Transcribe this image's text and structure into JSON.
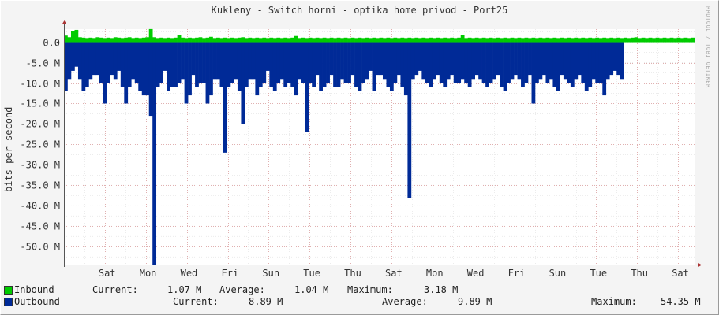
{
  "title": "Kukleny - Switch horni - optika home privod - Port25",
  "watermark": "RRDTOOL / TOBI OETIKER",
  "colors": {
    "inbound": "#00cc00",
    "outbound": "#002a97",
    "grid": "#e0b0b0",
    "axis": "#555555"
  },
  "chart_data": {
    "type": "area",
    "ylabel": "bits per second",
    "ylim": [
      -54.35,
      3.18
    ],
    "y_unit": "M",
    "yticks": [
      {
        "value": 0,
        "label": "0.0"
      },
      {
        "value": -5,
        "label": "-5.0 M"
      },
      {
        "value": -10,
        "label": "-10.0 M"
      },
      {
        "value": -15,
        "label": "-15.0 M"
      },
      {
        "value": -20,
        "label": "-20.0 M"
      },
      {
        "value": -25,
        "label": "-25.0 M"
      },
      {
        "value": -30,
        "label": "-30.0 M"
      },
      {
        "value": -35,
        "label": "-35.0 M"
      },
      {
        "value": -40,
        "label": "-40.0 M"
      },
      {
        "value": -45,
        "label": "-45.0 M"
      },
      {
        "value": -50,
        "label": "-50.0 M"
      }
    ],
    "xticks": [
      "Sat",
      "Mon",
      "Wed",
      "Fri",
      "Sun",
      "Tue",
      "Thu",
      "Sat",
      "Mon",
      "Wed",
      "Fri",
      "Sun",
      "Tue",
      "Thu",
      "Sat"
    ],
    "x_start_day": "Thu",
    "series": [
      {
        "name": "Inbound",
        "values": [
          1.6,
          1.2,
          2.6,
          3.0,
          1.2,
          1.1,
          1.0,
          1.1,
          1.0,
          1.2,
          1.1,
          1.0,
          1.1,
          1.0,
          1.2,
          1.1,
          1.0,
          1.1,
          1.2,
          1.0,
          1.1,
          1.0,
          1.1,
          1.2,
          3.2,
          1.2,
          1.0,
          1.1,
          1.0,
          1.1,
          1.0,
          1.1,
          1.8,
          1.1,
          1.0,
          1.1,
          1.0,
          1.1,
          1.2,
          1.0,
          1.1,
          1.3,
          1.0,
          1.1,
          1.0,
          1.1,
          1.0,
          1.1,
          1.0,
          1.1,
          1.2,
          1.0,
          1.1,
          1.0,
          1.1,
          1.0,
          1.1,
          1.0,
          1.1,
          1.0,
          1.1,
          1.0,
          1.1,
          1.0,
          1.1,
          1.5,
          1.0,
          1.1,
          1.0,
          1.1,
          1.0,
          1.1,
          1.0,
          1.1,
          1.0,
          1.1,
          1.0,
          1.1,
          1.0,
          1.1,
          1.0,
          1.1,
          1.0,
          1.1,
          1.0,
          1.1,
          1.0,
          1.1,
          1.0,
          1.1,
          1.0,
          1.1,
          1.0,
          1.1,
          1.0,
          1.1,
          1.0,
          1.1,
          1.0,
          1.1,
          1.0,
          1.1,
          1.0,
          1.1,
          1.0,
          1.1,
          1.0,
          1.1,
          1.0,
          1.1,
          1.0,
          1.1,
          1.7,
          1.0,
          1.1,
          1.0,
          1.1,
          1.0,
          1.1,
          1.0,
          1.1,
          1.0,
          1.1,
          1.0,
          1.1,
          1.0,
          1.1,
          1.0,
          1.1,
          1.0,
          1.1,
          1.0,
          1.1,
          1.0,
          1.1,
          1.0,
          1.1,
          1.0,
          1.1,
          1.0,
          1.1,
          1.0,
          1.1,
          1.0,
          1.1,
          1.0,
          1.1,
          1.0,
          1.1,
          1.0,
          1.1,
          1.0,
          1.1,
          1.0,
          1.1,
          1.0,
          1.1,
          1.0,
          1.1,
          1.0,
          1.1,
          1.2,
          1.0,
          1.1,
          1.0,
          1.1,
          1.0,
          1.1,
          1.0,
          1.1,
          1.0,
          1.1,
          1.0,
          1.1,
          1.0,
          1.1,
          1.0,
          1.1
        ]
      },
      {
        "name": "Outbound",
        "values": [
          12,
          9,
          7,
          6,
          9,
          12,
          11,
          9,
          8,
          8,
          10,
          15,
          10,
          8,
          9,
          7,
          11,
          15,
          11,
          9,
          10,
          12,
          13,
          13,
          18,
          56,
          11,
          10,
          7,
          12,
          11,
          11,
          10,
          9,
          15,
          13,
          8,
          11,
          10,
          10,
          15,
          13,
          9,
          9,
          11,
          27,
          11,
          10,
          9,
          12,
          20,
          11,
          9,
          9,
          13,
          11,
          10,
          7,
          11,
          12,
          10,
          9,
          11,
          10,
          11,
          13,
          9,
          10,
          22,
          10,
          11,
          8,
          12,
          11,
          10,
          8,
          11,
          11,
          9,
          10,
          10,
          8,
          11,
          12,
          10,
          9,
          7,
          12,
          8,
          8,
          9,
          11,
          12,
          10,
          8,
          11,
          13,
          38,
          9,
          8,
          7,
          9,
          10,
          11,
          9,
          8,
          10,
          11,
          9,
          8,
          10,
          10,
          9,
          10,
          11,
          9,
          8,
          9,
          10,
          11,
          10,
          9,
          8,
          11,
          12,
          10,
          9,
          8,
          9,
          11,
          10,
          8,
          15,
          10,
          9,
          8,
          10,
          9,
          11,
          12,
          8,
          9,
          10,
          11,
          9,
          8,
          10,
          12,
          11,
          9,
          10,
          10,
          13,
          9,
          8,
          7,
          8,
          9
        ]
      }
    ]
  },
  "legend": {
    "inbound": {
      "name": "Inbound",
      "current_label": "Current:",
      "current": "1.07 M",
      "average_label": "Average:",
      "average": "1.04 M",
      "maximum_label": "Maximum:",
      "maximum": "3.18 M"
    },
    "outbound": {
      "name": "Outbound",
      "current_label": "Current:",
      "current": "8.89 M",
      "average_label": "Average:",
      "average": "9.89 M",
      "maximum_label": "Maximum:",
      "maximum": "54.35 M"
    }
  }
}
